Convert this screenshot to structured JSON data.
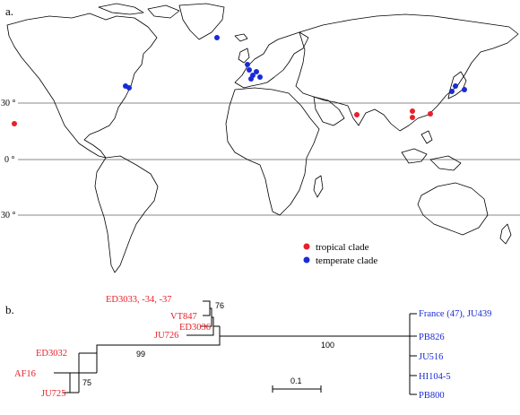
{
  "panel_a_label": "a.",
  "panel_b_label": "b.",
  "latitudes": [
    "30 °",
    "0 °",
    "30 °"
  ],
  "legend": {
    "tropical": "tropical clade",
    "temperate": "temperate clade",
    "tropical_color": "#e8202a",
    "temperate_color": "#1a2bd6"
  },
  "tree": {
    "red_tips": [
      "ED3033, -34, -37",
      "VT847",
      "ED3036",
      "JU726",
      "ED3032",
      "AF16",
      "JU725"
    ],
    "blue_tips": [
      "France (47), JU439",
      "PB826",
      "JU516",
      "HI104-5",
      "PB800"
    ],
    "bootstrap": [
      "76",
      "100",
      "99",
      "75"
    ],
    "scale_label": "0.1"
  }
}
